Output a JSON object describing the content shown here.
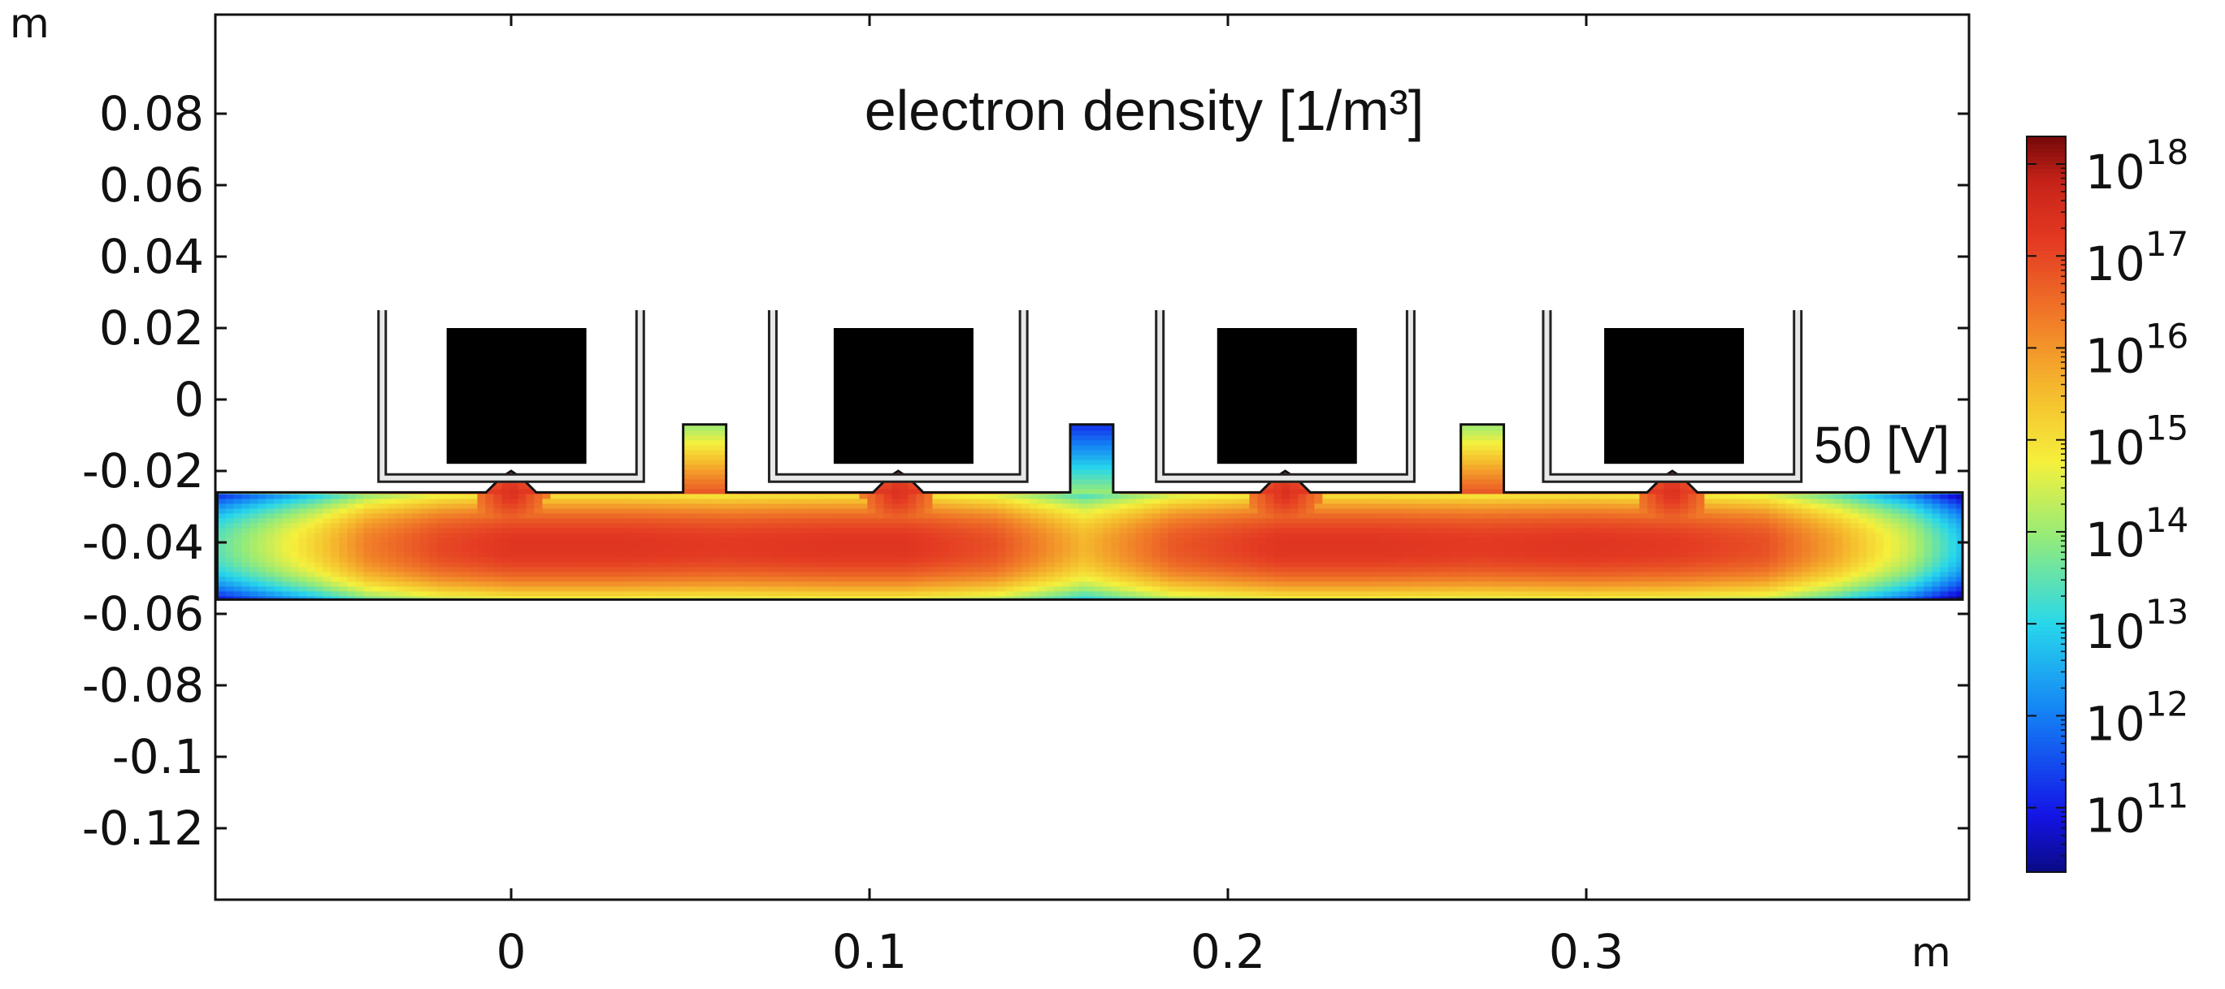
{
  "chart_data": {
    "type": "heatmap",
    "title": "electron density [1/m³]",
    "annotations": [
      "50 [V]"
    ],
    "x_axis": {
      "unit": "m",
      "range": [
        -0.082,
        0.405
      ],
      "ticks": [
        0,
        0.1,
        0.2,
        0.3
      ],
      "tick_labels": [
        "0",
        "0.1",
        "0.2",
        "0.3"
      ]
    },
    "y_axis": {
      "unit": "m",
      "range": [
        -0.138,
        0.107
      ],
      "ticks": [
        0.08,
        0.06,
        0.04,
        0.02,
        0,
        -0.02,
        -0.04,
        -0.06,
        -0.08,
        -0.1,
        -0.12
      ],
      "tick_labels": [
        "0.08",
        "0.06",
        "0.04",
        "0.02",
        "0",
        "-0.02",
        "-0.04",
        "-0.06",
        "-0.08",
        "-0.1",
        "-0.12"
      ]
    },
    "colorbar": {
      "scale": "log",
      "range_exponents": [
        10.3,
        18.3
      ],
      "tick_exponents": [
        18,
        17,
        16,
        15,
        14,
        13,
        12,
        11
      ],
      "tick_base": "10",
      "colormap": "rainbow"
    },
    "domain": {
      "chamber_y": [
        -0.056,
        -0.026
      ],
      "chamber_x": [
        -0.082,
        0.405
      ]
    },
    "coils": [
      {
        "center_x": 0.0,
        "block_x": [
          -0.018,
          0.021
        ],
        "cup_x": [
          -0.036,
          0.036
        ]
      },
      {
        "center_x": 0.108,
        "block_x": [
          0.09,
          0.129
        ],
        "cup_x": [
          0.073,
          0.143
        ]
      },
      {
        "center_x": 0.216,
        "block_x": [
          0.197,
          0.236
        ],
        "cup_x": [
          0.181,
          0.251
        ]
      },
      {
        "center_x": 0.324,
        "block_x": [
          0.305,
          0.344
        ],
        "cup_x": [
          0.289,
          0.359
        ]
      }
    ],
    "ports": [
      {
        "x": [
          0.048,
          0.06
        ],
        "top_y": -0.007,
        "peak_log_density": 16.8
      },
      {
        "x": [
          0.156,
          0.168
        ],
        "top_y": -0.007,
        "peak_log_density": 14.0
      },
      {
        "x": [
          0.265,
          0.277
        ],
        "top_y": -0.007,
        "peak_log_density": 16.8
      }
    ],
    "density_profile": {
      "description_values": "log10 electron density along chamber",
      "x": [
        -0.082,
        -0.055,
        -0.04,
        -0.02,
        0.0,
        0.03,
        0.06,
        0.09,
        0.11,
        0.135,
        0.16,
        0.185,
        0.215,
        0.24,
        0.27,
        0.3,
        0.325,
        0.35,
        0.37,
        0.39,
        0.405
      ],
      "peak_log_density": [
        13.5,
        15.2,
        16.3,
        17.0,
        17.3,
        17.3,
        17.2,
        17.3,
        17.3,
        16.9,
        15.6,
        16.8,
        17.3,
        17.3,
        17.2,
        17.3,
        17.2,
        16.9,
        15.8,
        14.4,
        12.8
      ]
    }
  }
}
